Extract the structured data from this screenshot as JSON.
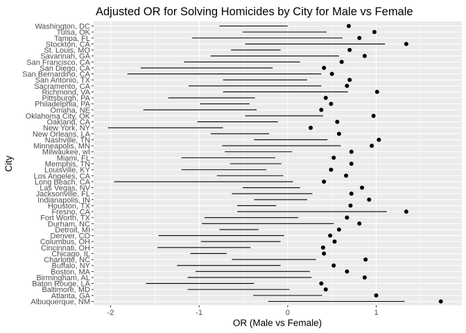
{
  "chart_data": {
    "type": "scatter",
    "title": "Adjusted OR for Solving Homicides by City  for Male vs Female",
    "xlabel": "OR (Male vs Female)",
    "ylabel": "City",
    "xlim": [
      -2.25,
      1.8
    ],
    "xticks": [
      -2,
      -1,
      0,
      1
    ],
    "xtick_labels": [
      "-2",
      "-1",
      "0",
      "1"
    ],
    "grid": true,
    "legend": "none",
    "colors": {
      "panel": "#ebebeb",
      "grid": "#ffffff",
      "mark": "#000000"
    },
    "cities": [
      "Washington, DC",
      "Tulsa, OK",
      "Tampa, FL",
      "Stockton, CA",
      "St. Louis, MO",
      "Savannah, GA",
      "San Francisco, CA",
      "San Diego, CA",
      "San Bernardino, CA",
      "San Antonio, TX",
      "Sacramento, CA",
      "Richmond, VA",
      "Pittsburgh, PA",
      "Philadelphia, PA",
      "Omaha, NE",
      "Oklahoma City, OK",
      "Oakland, CA",
      "New York, NY",
      "New Orleans, LA",
      "Nashville, TN",
      "Minneapolis, MN",
      "Milwaukee, wI",
      "Miami, FL",
      "Memphis, TN",
      "Louisville, KY",
      "Los Angeles, CA",
      "Long Beach, CA",
      "Las Vegas, NV",
      "Jacksonville, FL",
      "Indianapolis, IN",
      "Houston, TX",
      "Fresno, CA",
      "Fort Worth, TX",
      "Durham, NC",
      "Detroit, MI",
      "Denver, CO",
      "Columbus, OH",
      "Cincinnati, OH",
      "Chicago, IL",
      "Charlotte, NC",
      "Buffalo, NY",
      "Boston, MA",
      "Birmingham, AL",
      "Baton Rouge, LA",
      "Baltimore, MD",
      "Atlanta, GA",
      "Albuquerque, NM"
    ],
    "estimate": [
      0.69,
      0.98,
      0.81,
      1.34,
      0.7,
      0.87,
      0.61,
      0.41,
      0.5,
      0.7,
      0.67,
      1.01,
      0.43,
      0.49,
      0.38,
      0.97,
      0.56,
      0.26,
      0.58,
      1.03,
      0.95,
      0.72,
      0.52,
      0.72,
      0.49,
      0.66,
      0.41,
      0.84,
      0.72,
      0.92,
      0.71,
      1.34,
      0.67,
      0.81,
      0.58,
      0.48,
      0.53,
      0.4,
      0.41,
      0.88,
      0.52,
      0.67,
      0.87,
      0.38,
      0.43,
      1.0,
      1.73
    ],
    "lower": [
      -0.77,
      -0.51,
      -1.08,
      -0.48,
      -0.64,
      -0.87,
      -1.17,
      -1.66,
      -1.81,
      -0.73,
      -1.12,
      -0.73,
      -1.35,
      -0.99,
      -1.63,
      -0.48,
      -1.02,
      -2.03,
      -0.87,
      -0.38,
      -0.74,
      -0.71,
      -1.2,
      -0.65,
      -1.2,
      -0.8,
      -1.96,
      -0.51,
      -0.63,
      -0.38,
      -0.57,
      -0.57,
      -0.94,
      -0.97,
      -0.77,
      -1.46,
      -0.98,
      -1.47,
      -1.1,
      -0.63,
      -1.25,
      -1.04,
      -1.13,
      -1.6,
      -1.13,
      -0.39,
      -0.22
    ],
    "upper": [
      0.0,
      0.44,
      0.62,
      1.1,
      -0.08,
      0.58,
      0.14,
      -0.17,
      0.38,
      0.22,
      0.38,
      0.68,
      -0.37,
      -0.43,
      -0.35,
      0.4,
      -0.11,
      -0.73,
      -0.21,
      0.45,
      0.6,
      0.05,
      -0.14,
      -0.07,
      -0.24,
      -0.05,
      0.06,
      0.14,
      0.28,
      0.22,
      -0.13,
      1.12,
      0.12,
      0.52,
      -0.33,
      -0.04,
      -0.08,
      -0.42,
      -0.69,
      0.32,
      -0.08,
      0.25,
      0.27,
      -0.38,
      0.02,
      0.39,
      1.32
    ]
  }
}
